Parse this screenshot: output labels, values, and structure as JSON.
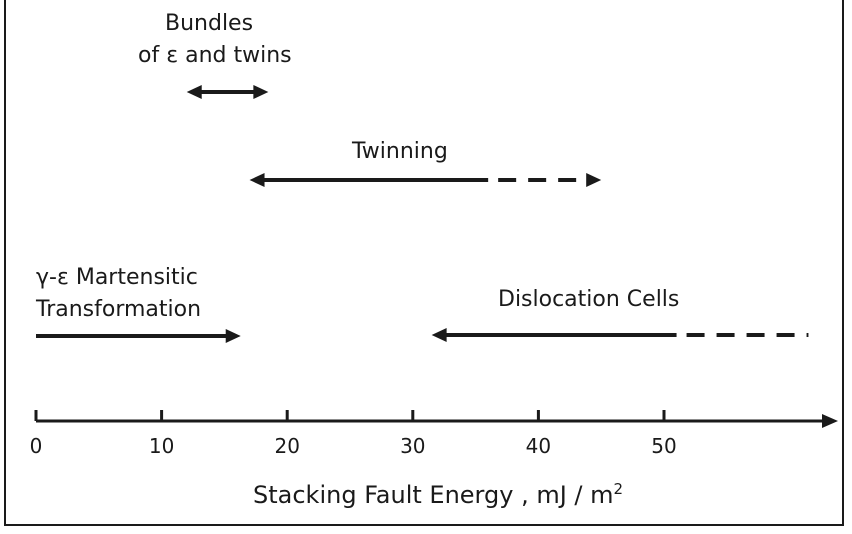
{
  "diagram": {
    "axis": {
      "ticks": [
        "0",
        "10",
        "20",
        "30",
        "40",
        "50"
      ],
      "title": "Stacking Fault Energy , mJ / m",
      "title_superscript": "2"
    },
    "ranges": [
      {
        "id": "bundles",
        "label_lines": [
          "Bundles",
          "of ε and twins"
        ],
        "solid_from": 12,
        "solid_to": 18.5,
        "dashed_to": null,
        "left_arrow": true,
        "right_arrow": true
      },
      {
        "id": "twinning",
        "label_lines": [
          "Twinning"
        ],
        "solid_from": 17,
        "solid_to": 36,
        "dashed_to": 45,
        "left_arrow": true,
        "right_arrow": true
      },
      {
        "id": "martensitic",
        "label_lines": [
          "γ-ε Martensitic",
          "Transformation"
        ],
        "solid_from": 0,
        "solid_to": 16.3,
        "dashed_to": null,
        "left_arrow": false,
        "right_arrow": true
      },
      {
        "id": "dislocation",
        "label_lines": [
          "Dislocation Cells"
        ],
        "solid_from": 31.5,
        "solid_to": 51,
        "dashed_to": 61.5,
        "left_arrow": true,
        "right_arrow": false
      }
    ]
  }
}
